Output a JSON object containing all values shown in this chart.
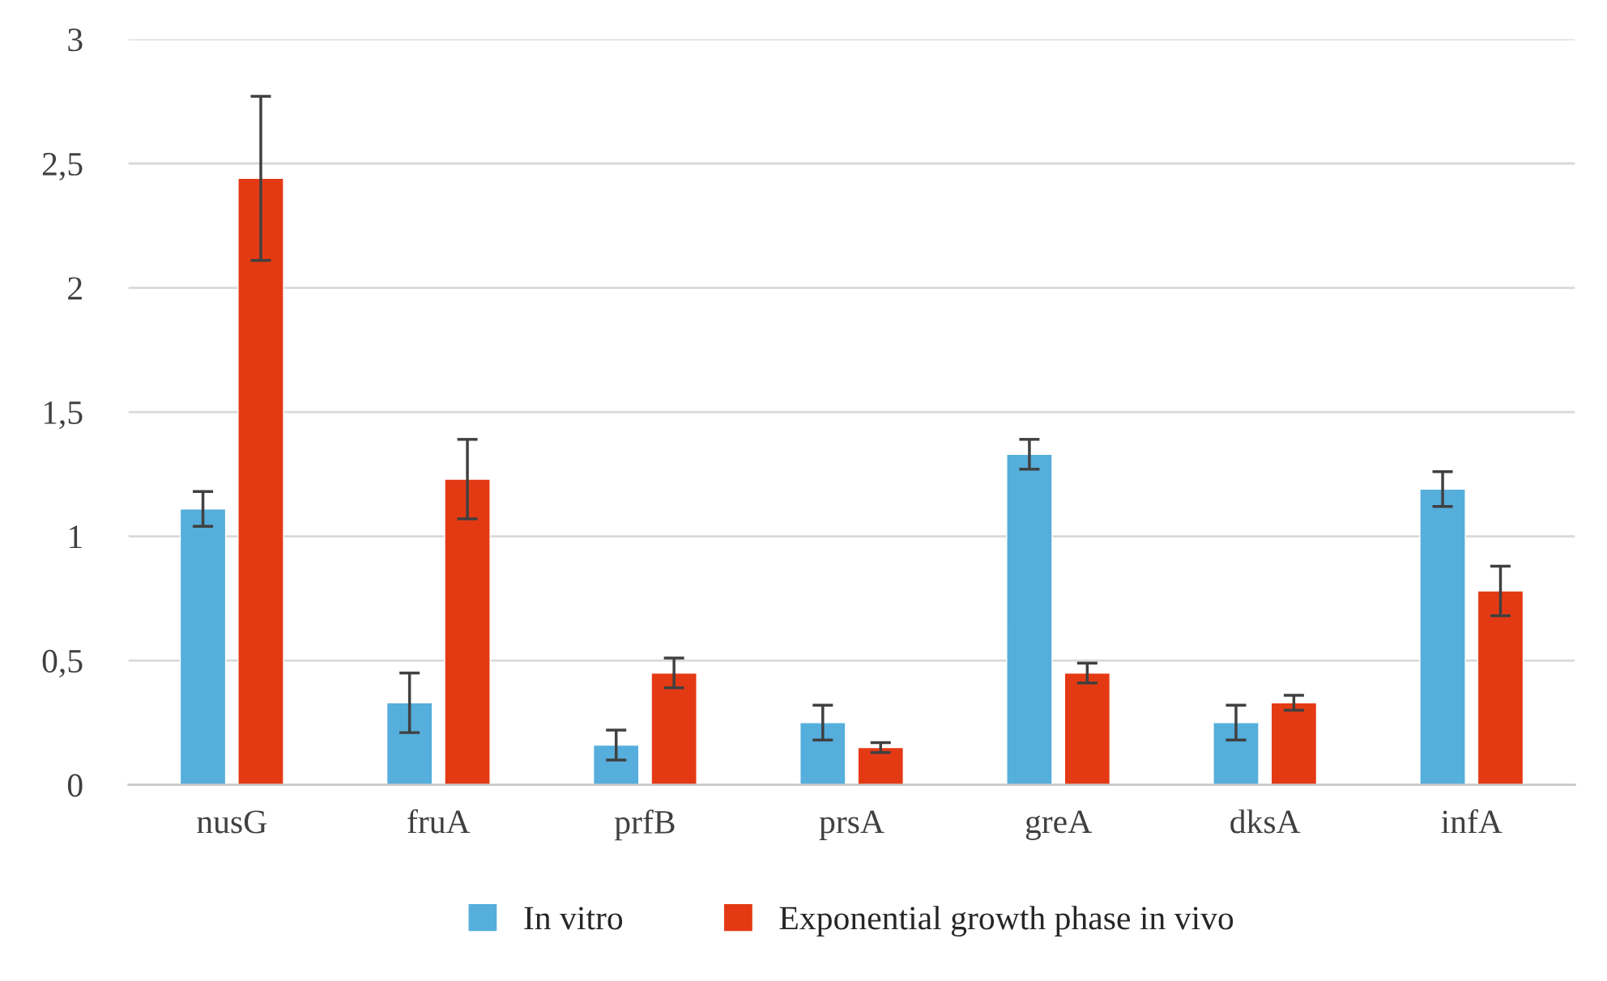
{
  "chart_data": {
    "type": "bar",
    "categories": [
      "nusG",
      "fruA",
      "prfB",
      "prsA",
      "greA",
      "dksA",
      "infA"
    ],
    "series": [
      {
        "name": "In vitro",
        "color": "#55aedb",
        "values": [
          1.11,
          0.33,
          0.16,
          0.25,
          1.33,
          0.25,
          1.19
        ],
        "errors": [
          0.07,
          0.12,
          0.06,
          0.07,
          0.06,
          0.07,
          0.07
        ]
      },
      {
        "name": "Exponential growth phase in vivo",
        "color": "#e43a14",
        "values": [
          2.44,
          1.23,
          0.45,
          0.15,
          0.45,
          0.33,
          0.78
        ],
        "errors": [
          0.33,
          0.16,
          0.06,
          0.02,
          0.04,
          0.03,
          0.1
        ]
      }
    ],
    "ylim": [
      0,
      3
    ],
    "yticks": [
      0,
      {
        "value": 0.5,
        "label": "0,5"
      },
      1,
      {
        "value": 1.5,
        "label": "1,5"
      },
      2,
      {
        "value": 2.5,
        "label": "2,5"
      },
      3
    ],
    "grid": "y",
    "legend": "bottom"
  }
}
